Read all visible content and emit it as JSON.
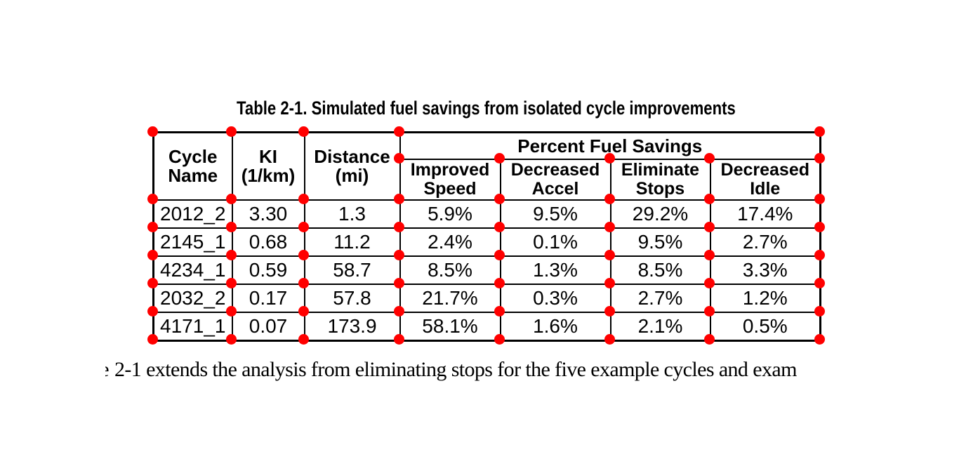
{
  "colors": {
    "page_background": "#ffffff",
    "table_border": "#000000",
    "text": "#000000",
    "dot_red": "#ff0000"
  },
  "table": {
    "caption": "Table 2-1. Simulated fuel savings from isolated cycle improvements",
    "header": {
      "cycle_name": "Cycle Name",
      "ki": "KI (1/km)",
      "distance": "Distance (mi)",
      "group": "Percent Fuel Savings",
      "sub": [
        "Improved Speed",
        "Decreased Accel",
        "Eliminate Stops",
        "Decreased Idle"
      ]
    },
    "rows": [
      [
        "2012_2",
        "3.30",
        "1.3",
        "5.9%",
        "9.5%",
        "29.2%",
        "17.4%"
      ],
      [
        "2145_1",
        "0.68",
        "11.2",
        "2.4%",
        "0.1%",
        "9.5%",
        "2.7%"
      ],
      [
        "4234_1",
        "0.59",
        "58.7",
        "8.5%",
        "1.3%",
        "8.5%",
        "3.3%"
      ],
      [
        "2032_2",
        "0.17",
        "57.8",
        "21.7%",
        "0.3%",
        "2.7%",
        "1.2%"
      ],
      [
        "4171_1",
        "0.07",
        "173.9",
        "58.1%",
        "1.6%",
        "2.1%",
        "0.5%"
      ]
    ]
  },
  "body_text": {
    "clipped_prefix": "e",
    "sentence": "2-1 extends the analysis from eliminating stops for the five example cycles and exam"
  }
}
